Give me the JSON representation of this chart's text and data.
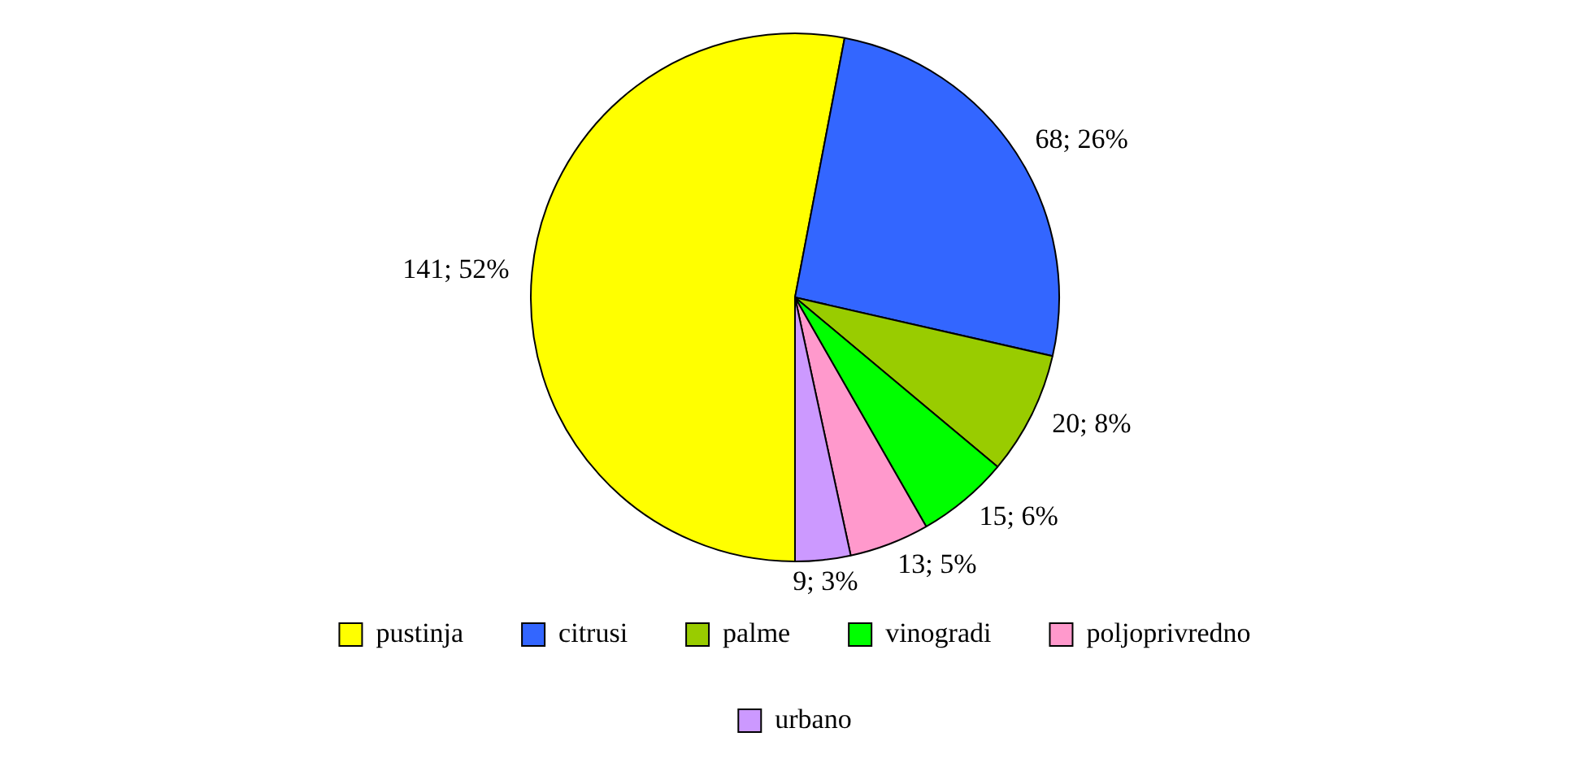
{
  "chart_data": {
    "type": "pie",
    "categories": [
      "pustinja",
      "citrusi",
      "palme",
      "vinogradi",
      "poljoprivredno",
      "urbano"
    ],
    "values": [
      141,
      68,
      20,
      15,
      13,
      9
    ],
    "colors": [
      "#ffff00",
      "#3366ff",
      "#99cc00",
      "#00ff00",
      "#ff99cc",
      "#cc99ff"
    ],
    "value_labels": [
      "141; 52%",
      "68; 26%",
      "20; 8%",
      "15; 6%",
      "13; 5%",
      "9; 3%"
    ],
    "legend": "bottom"
  }
}
